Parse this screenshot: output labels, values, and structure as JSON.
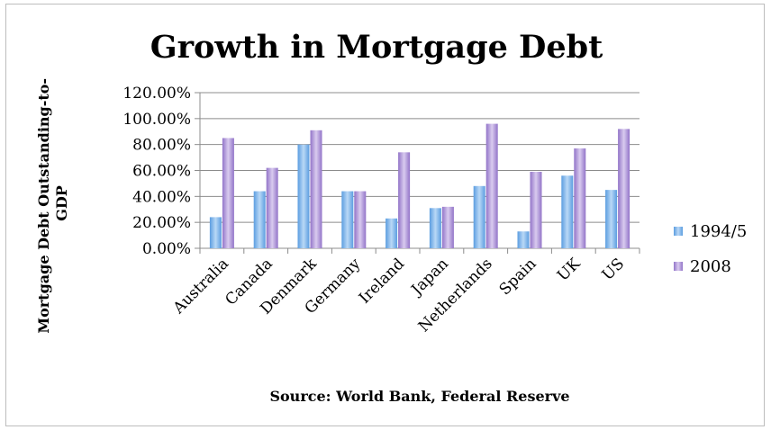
{
  "chart_data": {
    "type": "bar",
    "title": "Growth in Mortgage Debt",
    "xlabel": "Source: World Bank, Federal Reserve",
    "ylabel": "Mortgage Debt Outstanding-to-GDP",
    "ylim": [
      0,
      1.2
    ],
    "yticks": [
      "0.00%",
      "20.00%",
      "40.00%",
      "60.00%",
      "80.00%",
      "100.00%",
      "120.00%"
    ],
    "grid": true,
    "legend_position": "right",
    "categories": [
      "Australia",
      "Canada",
      "Denmark",
      "Germany",
      "Ireland",
      "Japan",
      "Netherlands",
      "Spain",
      "UK",
      "US"
    ],
    "series": [
      {
        "name": "1994/5",
        "color": "#7fb3e8",
        "values": [
          0.24,
          0.44,
          0.8,
          0.44,
          0.23,
          0.31,
          0.48,
          0.13,
          0.56,
          0.45
        ]
      },
      {
        "name": "2008",
        "color": "#a98fd3",
        "values": [
          0.85,
          0.62,
          0.91,
          0.44,
          0.74,
          0.32,
          0.96,
          0.59,
          0.77,
          0.92
        ]
      }
    ]
  }
}
